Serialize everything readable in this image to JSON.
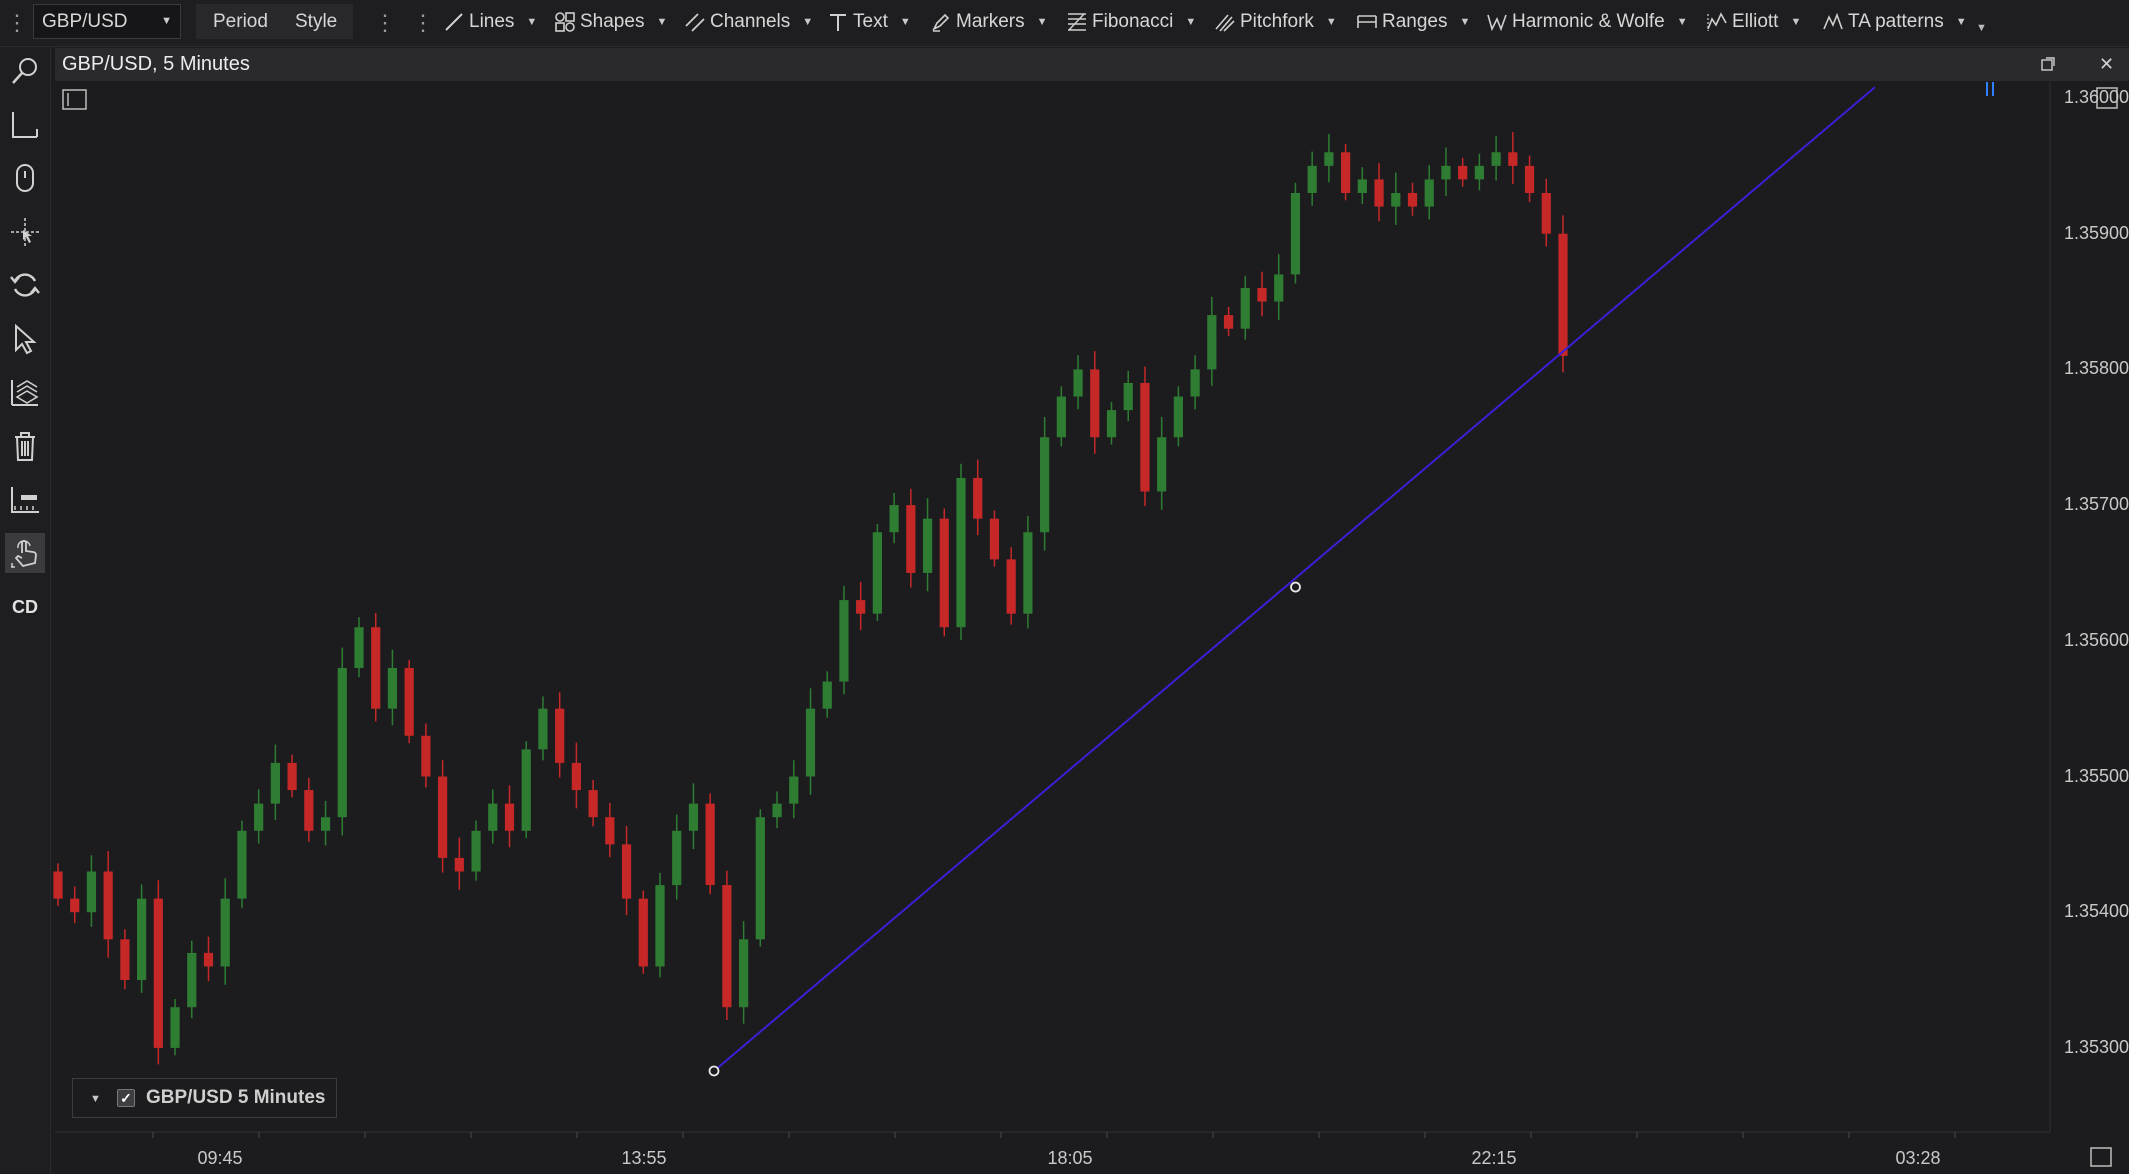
{
  "toolbar": {
    "symbol": "GBP/USD",
    "period_label": "Period",
    "style_label": "Style",
    "tools": [
      {
        "label": "Lines",
        "icon": "line-icon"
      },
      {
        "label": "Shapes",
        "icon": "shapes-icon"
      },
      {
        "label": "Channels",
        "icon": "channels-icon"
      },
      {
        "label": "Text",
        "icon": "text-icon"
      },
      {
        "label": "Markers",
        "icon": "marker-pen-icon"
      },
      {
        "label": "Fibonacci",
        "icon": "fibonacci-icon"
      },
      {
        "label": "Pitchfork",
        "icon": "pitchfork-icon"
      },
      {
        "label": "Ranges",
        "icon": "ranges-icon"
      },
      {
        "label": "Harmonic & Wolfe",
        "icon": "harmonic-icon"
      },
      {
        "label": "Elliott",
        "icon": "elliott-icon"
      },
      {
        "label": "TA patterns",
        "icon": "ta-patterns-icon"
      }
    ]
  },
  "left_tools": [
    "search-icon",
    "crosshair-icon",
    "mouse-icon",
    "move-icon",
    "refresh-icon",
    "cursor-icon",
    "layers-icon",
    "trash-icon",
    "price-line-icon",
    "hand-pointer-icon",
    "CD"
  ],
  "chart": {
    "title": "GBP/USD, 5 Minutes",
    "legend_label": "GBP/USD 5 Minutes",
    "legend_checked": true
  },
  "colors": {
    "background": "#1c1c1f",
    "bull": "#2e7d32",
    "bear": "#c62828",
    "trendline": "#3b1fd6",
    "grid": "#2a2a2e",
    "axis_text": "#c9c9c9"
  },
  "chart_data": {
    "type": "candlestick",
    "symbol": "GBP/USD",
    "timeframe": "5 Minutes",
    "y_ticks": [
      "1.36000",
      "1.35900",
      "1.35800",
      "1.35700",
      "1.35600",
      "1.35500",
      "1.35400",
      "1.35300"
    ],
    "x_ticks": [
      "09:45",
      "13:55",
      "18:05",
      "22:15",
      "03:28"
    ],
    "ylim": [
      1.3522,
      1.3601
    ],
    "grid": false,
    "closes": [
      1.3541,
      1.354,
      1.3543,
      1.3538,
      1.3535,
      1.3541,
      1.353,
      1.3533,
      1.3537,
      1.3536,
      1.3541,
      1.3546,
      1.3548,
      1.3551,
      1.3549,
      1.3546,
      1.3547,
      1.3558,
      1.3561,
      1.3555,
      1.3558,
      1.3553,
      1.355,
      1.3544,
      1.3543,
      1.3546,
      1.3548,
      1.3546,
      1.3552,
      1.3555,
      1.3551,
      1.3549,
      1.3547,
      1.3545,
      1.3541,
      1.3536,
      1.3542,
      1.3546,
      1.3548,
      1.3542,
      1.3533,
      1.3538,
      1.3547,
      1.3548,
      1.355,
      1.3555,
      1.3557,
      1.3563,
      1.3562,
      1.3568,
      1.357,
      1.3565,
      1.3569,
      1.3561,
      1.3572,
      1.3569,
      1.3566,
      1.3562,
      1.3568,
      1.3575,
      1.3578,
      1.358,
      1.3575,
      1.3577,
      1.3579,
      1.3571,
      1.3575,
      1.3578,
      1.358,
      1.3584,
      1.3583,
      1.3586,
      1.3585,
      1.3587,
      1.3593,
      1.3595,
      1.3596,
      1.3593,
      1.3594,
      1.3592,
      1.3593,
      1.3592,
      1.3594,
      1.3595,
      1.3594,
      1.3595,
      1.3596,
      1.3595,
      1.3593,
      1.359,
      1.3581
    ],
    "trendline": {
      "from": [
        "13:55",
        1.35283
      ],
      "to": [
        "03:28",
        1.36008
      ],
      "midpoint_handle": true
    }
  }
}
